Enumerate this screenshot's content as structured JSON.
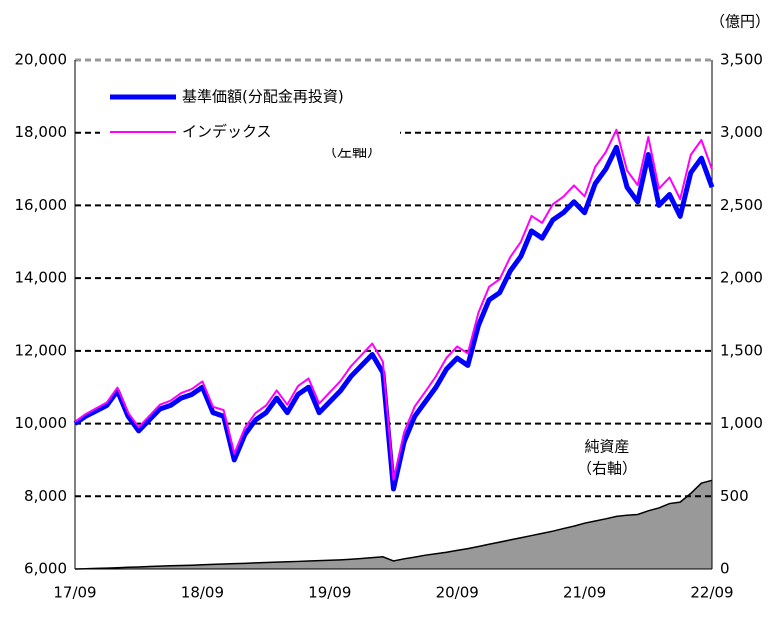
{
  "chart_data": {
    "type": "line",
    "y2_unit": "（億円）",
    "annotations": [
      "（左軸）",
      "純資産",
      "（右軸）"
    ],
    "categories": [
      "17/09",
      null,
      null,
      null,
      null,
      null,
      null,
      null,
      null,
      null,
      null,
      null,
      "18/09",
      null,
      null,
      null,
      null,
      null,
      null,
      null,
      null,
      null,
      null,
      null,
      "19/09",
      null,
      null,
      null,
      null,
      null,
      null,
      null,
      null,
      null,
      null,
      null,
      "20/09",
      null,
      null,
      null,
      null,
      null,
      null,
      null,
      null,
      null,
      null,
      null,
      "21/09",
      null,
      null,
      null,
      null,
      null,
      null,
      null,
      null,
      null,
      null,
      null,
      "22/09"
    ],
    "series": [
      {
        "name": "基準価額(分配金再投資)",
        "color": "#0000ff",
        "width": 5,
        "values": [
          10000,
          10200,
          10350,
          10500,
          10900,
          10200,
          9800,
          10100,
          10400,
          10500,
          10700,
          10800,
          11000,
          10300,
          10200,
          9000,
          9700,
          10100,
          10300,
          10700,
          10300,
          10800,
          11000,
          10300,
          10600,
          10900,
          11300,
          11600,
          11900,
          11400,
          8200,
          9500,
          10200,
          10600,
          11000,
          11500,
          11800,
          11600,
          12700,
          13400,
          13600,
          14200,
          14600,
          15300,
          15100,
          15600,
          15800,
          16100,
          15800,
          16600,
          17000,
          17600,
          16500,
          16100,
          17400,
          16000,
          16300,
          15700,
          16900,
          17300,
          16500
        ]
      },
      {
        "name": "インデックス",
        "color": "#ff00ff",
        "width": 2,
        "values": [
          10050,
          10260,
          10420,
          10580,
          10990,
          10300,
          9900,
          10210,
          10520,
          10630,
          10840,
          10950,
          11160,
          10460,
          10370,
          9170,
          9880,
          10290,
          10500,
          10910,
          10520,
          11030,
          11240,
          10550,
          10860,
          11170,
          11580,
          11890,
          12200,
          11700,
          8450,
          9760,
          10470,
          10880,
          11300,
          11810,
          12120,
          11930,
          13050,
          13760,
          13970,
          14580,
          15000,
          15710,
          15520,
          16030,
          16240,
          16550,
          16250,
          17060,
          17470,
          18080,
          16960,
          16560,
          17880,
          16460,
          16770,
          16170,
          17390,
          17800,
          16990
        ]
      },
      {
        "name": "純資産",
        "color": "#999999",
        "axis": "y2",
        "style": "area",
        "values": [
          0,
          2,
          4,
          6,
          9,
          12,
          14,
          17,
          20,
          22,
          24,
          26,
          29,
          32,
          34,
          37,
          39,
          42,
          45,
          47,
          50,
          52,
          55,
          58,
          60,
          63,
          67,
          72,
          78,
          84,
          55,
          70,
          82,
          95,
          105,
          115,
          128,
          140,
          155,
          170,
          185,
          200,
          215,
          230,
          245,
          260,
          278,
          295,
          315,
          330,
          345,
          362,
          370,
          375,
          400,
          420,
          450,
          460,
          520,
          590,
          610
        ]
      }
    ],
    "ylim": [
      6000,
      20000
    ],
    "yticks": [
      {
        "value": 6000,
        "label": "6,000"
      },
      {
        "value": 8000,
        "label": "8,000"
      },
      {
        "value": 10000,
        "label": "10,000"
      },
      {
        "value": 12000,
        "label": "12,000"
      },
      {
        "value": 14000,
        "label": "14,000"
      },
      {
        "value": 16000,
        "label": "16,000"
      },
      {
        "value": 18000,
        "label": "18,000"
      },
      {
        "value": 20000,
        "label": "20,000"
      }
    ],
    "y2lim": [
      0,
      3500
    ],
    "y2ticks": [
      0,
      500,
      {
        "value": 1000,
        "label": "1,000"
      },
      {
        "value": 1500,
        "label": "1,500"
      },
      {
        "value": 2000,
        "label": "2,000"
      },
      {
        "value": 2500,
        "label": "2,500"
      },
      {
        "value": 3000,
        "label": "3,000"
      },
      {
        "value": 3500,
        "label": "3,500"
      }
    ],
    "grid": true
  }
}
